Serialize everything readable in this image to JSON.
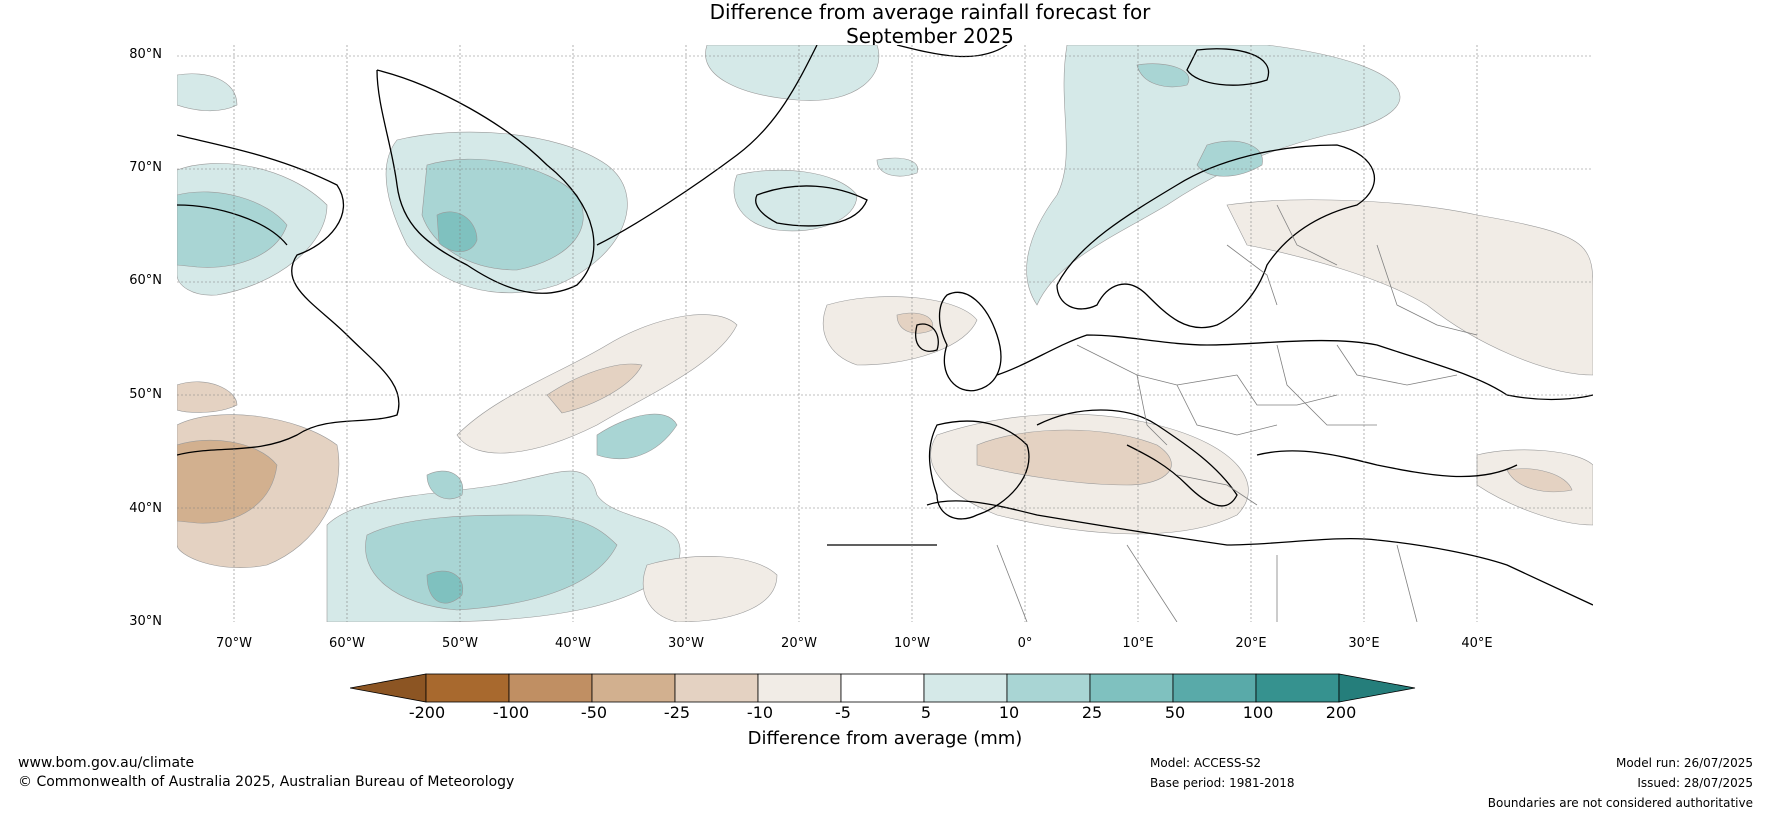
{
  "title": {
    "line1": "Difference from average rainfall forecast for",
    "line2": "September 2025"
  },
  "map": {
    "lat_labels": [
      "80°N",
      "70°N",
      "60°N",
      "50°N",
      "40°N",
      "30°N"
    ],
    "lon_labels": [
      "70°W",
      "60°W",
      "50°W",
      "40°W",
      "30°W",
      "20°W",
      "10°W",
      "0°",
      "10°E",
      "20°E",
      "30°E",
      "40°E"
    ]
  },
  "colorbar": {
    "ticks": [
      "-200",
      "-100",
      "-50",
      "-25",
      "-10",
      "-5",
      "5",
      "10",
      "25",
      "50",
      "100",
      "200"
    ],
    "colors": [
      "#a8692e",
      "#c08f63",
      "#d2b08f",
      "#e4d2c2",
      "#f1ece6",
      "#ffffff",
      "#d5e9e8",
      "#a9d5d4",
      "#7fc1bf",
      "#59aaa9",
      "#36928f"
    ],
    "extend_low": "#8c5523",
    "extend_high": "#257e7b",
    "label": "Difference from average (mm)"
  },
  "footer": {
    "website": "www.bom.gov.au/climate",
    "copyright": "© Commonwealth of Australia 2025, Australian Bureau of Meteorology",
    "model": "Model: ACCESS-S2",
    "base_period": "Base period: 1981-2018",
    "model_run": "Model run: 26/07/2025",
    "issued": "Issued: 28/07/2025",
    "disclaimer": "Boundaries are not considered authoritative"
  },
  "colors": {
    "land_outline": "#000000",
    "border": "#808080",
    "grid": "#808080"
  }
}
